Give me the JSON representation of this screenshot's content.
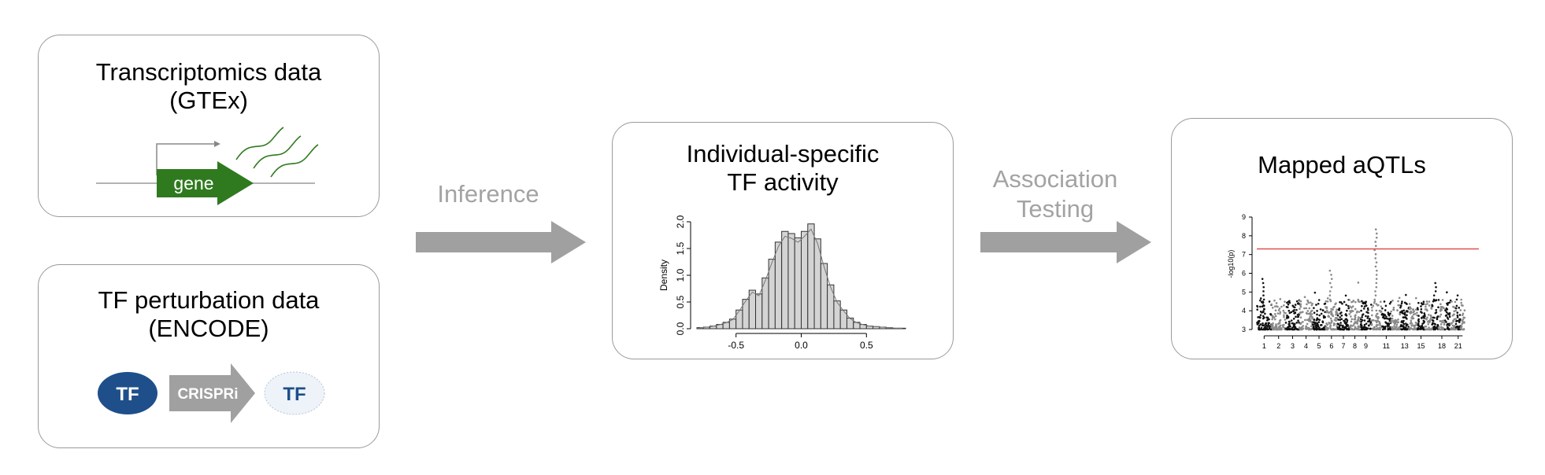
{
  "boxes": {
    "transcriptomics": {
      "title_line1": "Transcriptomics data",
      "title_line2": "(GTEx)",
      "gene_label": "gene"
    },
    "perturbation": {
      "title_line1": "TF perturbation data",
      "title_line2": "(ENCODE)",
      "tf_label": "TF",
      "crispri_label": "CRISPRi",
      "tf_after_label": "TF"
    },
    "activity": {
      "title_line1": "Individual-specific",
      "title_line2": "TF activity"
    },
    "aqtls": {
      "title": "Mapped aQTLs"
    }
  },
  "arrows": {
    "inference": "Inference",
    "association_line1": "Association",
    "association_line2": "Testing"
  },
  "colors": {
    "gene_green": "#2f7a1f",
    "tf_blue": "#1e4f8a",
    "arrow_gray": "#a0a0a0",
    "threshold_red": "#e05050"
  },
  "histogram": {
    "type": "bar",
    "ylabel": "Density",
    "x_ticks": [
      "-0.5",
      "0.0",
      "0.5"
    ],
    "y_ticks": [
      "0.0",
      "0.5",
      "1.0",
      "1.5",
      "2.0"
    ],
    "x_range": [
      -0.8,
      0.8
    ],
    "ylim": [
      0,
      2.0
    ],
    "bin_width": 0.05,
    "bin_start": -0.8,
    "values": [
      0.02,
      0.03,
      0.05,
      0.08,
      0.12,
      0.18,
      0.35,
      0.55,
      0.72,
      0.65,
      0.95,
      1.3,
      1.62,
      1.82,
      1.78,
      1.7,
      1.82,
      1.96,
      1.68,
      1.22,
      0.82,
      0.52,
      0.35,
      0.2,
      0.12,
      0.08,
      0.05,
      0.04,
      0.03,
      0.02,
      0.01,
      0.01
    ]
  },
  "manhattan": {
    "type": "scatter",
    "ylabel": "-log10(p)",
    "y_ticks": [
      "3",
      "4",
      "5",
      "6",
      "7",
      "8",
      "9"
    ],
    "x_ticks": [
      "1",
      "2",
      "3",
      "4",
      "5",
      "6",
      "7",
      "8",
      "9",
      "11",
      "13",
      "15",
      "18",
      "21"
    ],
    "ylim": [
      3,
      9
    ],
    "threshold": 7.3,
    "chromosomes": 22
  }
}
